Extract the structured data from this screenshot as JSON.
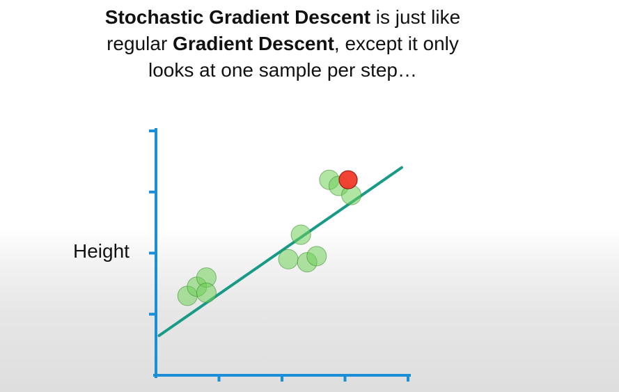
{
  "caption": {
    "line1_bold": "Stochastic Gradient Descent",
    "line1_rest": " is just like",
    "line2_pre": "regular ",
    "line2_bold": "Gradient Descent",
    "line2_rest": ", except it only",
    "line3": "looks at one sample per step…"
  },
  "chart_data": {
    "type": "scatter",
    "title": "",
    "ylabel": "Height",
    "xlabel": "",
    "xlim": [
      0,
      4
    ],
    "ylim": [
      0,
      4
    ],
    "grid": false,
    "x_ticks": [
      1,
      2,
      3,
      4
    ],
    "y_ticks": [
      1,
      2,
      3,
      4
    ],
    "points": [
      {
        "x": 0.5,
        "y": 1.3
      },
      {
        "x": 0.65,
        "y": 1.45
      },
      {
        "x": 0.8,
        "y": 1.6
      },
      {
        "x": 0.8,
        "y": 1.35
      },
      {
        "x": 2.3,
        "y": 2.3
      },
      {
        "x": 2.1,
        "y": 1.9
      },
      {
        "x": 2.4,
        "y": 1.85
      },
      {
        "x": 2.55,
        "y": 1.95
      },
      {
        "x": 2.75,
        "y": 3.2
      },
      {
        "x": 2.9,
        "y": 3.1
      },
      {
        "x": 3.05,
        "y": 3.2
      },
      {
        "x": 3.1,
        "y": 2.95
      }
    ],
    "highlighted_point": {
      "x": 3.05,
      "y": 3.2
    },
    "fit_line": {
      "x": [
        0.05,
        3.9
      ],
      "y": [
        0.65,
        3.4
      ]
    },
    "colors": {
      "axis": "#1a8fd8",
      "line": "#179a86",
      "point_fill": "#6fcf5a",
      "point_stroke": "#3f8f32",
      "highlight_fill": "#f03a2a",
      "highlight_stroke": "#9a1a10"
    }
  }
}
